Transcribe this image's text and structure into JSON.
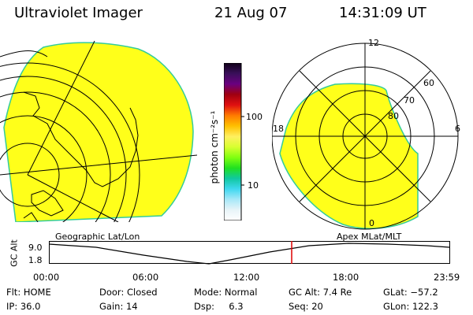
{
  "header": {
    "title": "Ultraviolet Imager",
    "date": "21 Aug 07",
    "time": "14:31:09 UT"
  },
  "colors": {
    "fill": "#ffff1a",
    "edge": "#33cc99",
    "line": "#000000",
    "marker": "#dd0000"
  },
  "colorbar": {
    "unit_label": "photon cm⁻²s⁻¹",
    "ticks": [
      "100",
      "10"
    ],
    "stops": [
      "#100018",
      "#3a0f5a",
      "#6a0080",
      "#a00010",
      "#e01010",
      "#ff7a00",
      "#ffc000",
      "#fff060",
      "#d8ff30",
      "#80ff10",
      "#20e020",
      "#10c8a0",
      "#40d8f0",
      "#a8e8f8",
      "#e8f4f8",
      "#ffffff"
    ]
  },
  "geo_panel": {
    "label": "Geographic Lat/Lon"
  },
  "polar_panel": {
    "label": "Apex MLat/MLT",
    "mlt_labels": [
      "12",
      "18",
      "6",
      "0"
    ],
    "lat_labels": [
      "60",
      "70",
      "80"
    ]
  },
  "timeline": {
    "y_axis_label": "GC Alt",
    "y_ticks": [
      "9.0",
      "1.8"
    ],
    "x_ticks": [
      "00:00",
      "06:00",
      "12:00",
      "18:00",
      "23:59"
    ],
    "marker_time": "14:31"
  },
  "status": {
    "col1": [
      "Flt: HOME",
      "IP: 36.0"
    ],
    "col2": [
      "Door: Closed",
      "Gain: 14"
    ],
    "col3": [
      "Mode: Normal",
      "Dsp:     6.3"
    ],
    "col4": [
      "GC Alt: 7.4 Re",
      "Seq: 20"
    ],
    "col5": [
      "GLat: −57.2",
      "GLon: 122.3"
    ]
  }
}
